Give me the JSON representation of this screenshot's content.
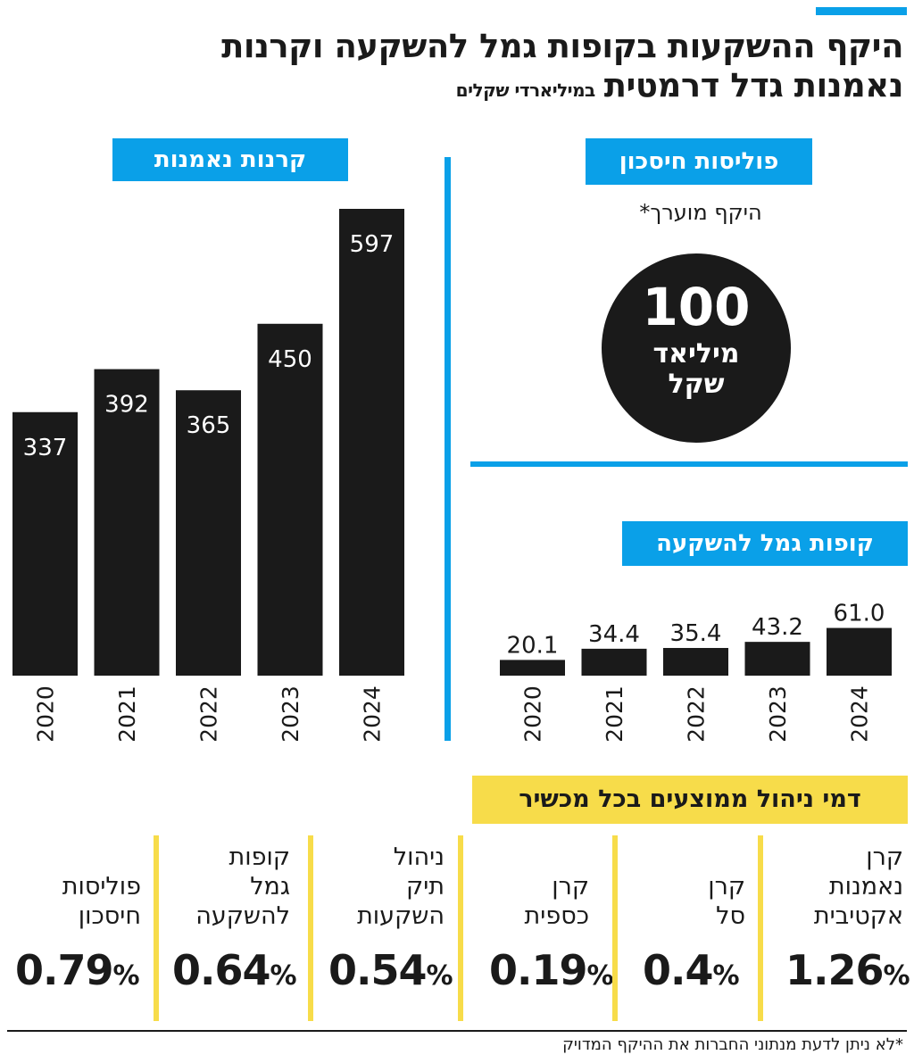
{
  "title": {
    "line1": "היקף ההשקעות בקופות גמל להשקעה וקרנות",
    "line2": "נאמנות גדל דרמטית",
    "unit": "במיליארדי שקלים"
  },
  "policies": {
    "label": "פוליסות חיסכון",
    "caption": "היקף מוערך*",
    "value": "100",
    "unit_line1": "מיליאד",
    "unit_line2": "שקל"
  },
  "fees": {
    "header": "דמי ניהול ממוצעים בכל מכשיר",
    "items": [
      {
        "name_lines": [
          "קרן",
          "נאמנות",
          "אקטיבית"
        ],
        "value": "1.26",
        "suffix": "%"
      },
      {
        "name_lines": [
          "קרן",
          "סל"
        ],
        "value": "0.4",
        "suffix": "%"
      },
      {
        "name_lines": [
          "קרן",
          "כספית"
        ],
        "value": "0.19",
        "suffix": "%"
      },
      {
        "name_lines": [
          "ניהול",
          "תיק",
          "השקעות"
        ],
        "value": "0.54",
        "suffix": "%"
      },
      {
        "name_lines": [
          "קופות",
          "גמל",
          "להשקעה"
        ],
        "value": "0.64",
        "suffix": "%"
      },
      {
        "name_lines": [
          "פוליסות",
          "חיסכון"
        ],
        "value": "0.79",
        "suffix": "%"
      }
    ]
  },
  "footnote": "*לא ניתן לדעת מנתוני החברות את ההיקף המדויק",
  "colors": {
    "accent_blue": "#0aa0e8",
    "accent_yellow": "#f7dc4a",
    "bar": "#1a1a1a"
  },
  "chart_data": [
    {
      "type": "bar",
      "title": "קרנות נאמנות",
      "categories": [
        "2020",
        "2021",
        "2022",
        "2023",
        "2024"
      ],
      "values": [
        337,
        392,
        365,
        450,
        597
      ],
      "value_labels": [
        "337",
        "392",
        "365",
        "450",
        "597"
      ],
      "ylim": [
        0,
        620
      ],
      "grid": false
    },
    {
      "type": "bar",
      "title": "קופות גמל להשקעה",
      "categories": [
        "2020",
        "2021",
        "2022",
        "2023",
        "2024"
      ],
      "values": [
        20.1,
        34.4,
        35.4,
        43.2,
        61.0
      ],
      "value_labels": [
        "20.1",
        "34.4",
        "35.4",
        "43.2",
        "61.0"
      ],
      "ylim": [
        0,
        620
      ],
      "grid": false
    }
  ]
}
